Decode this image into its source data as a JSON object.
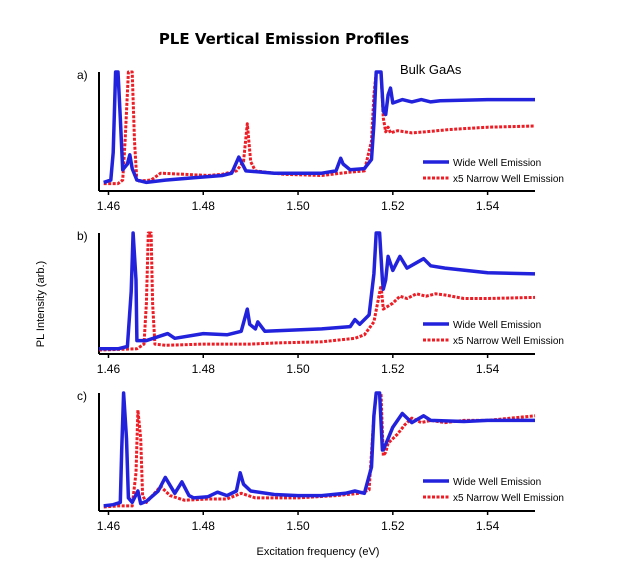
{
  "chart_data": {
    "type": "line",
    "title": "PLE Vertical Emission Profiles",
    "xlabel": "Excitation frequency (eV)",
    "ylabel": "PL Intensity (arb.)",
    "xlim": [
      1.458,
      1.55
    ],
    "x_ticks": [
      "1.46",
      "1.48",
      "1.50",
      "1.52",
      "1.54"
    ],
    "x_tick_values": [
      1.46,
      1.48,
      1.5,
      1.52,
      1.54
    ],
    "annotation": "Bulk GaAs",
    "colors": {
      "wide": "#2222dd",
      "narrow": "#ee1c24"
    },
    "panels": [
      {
        "label": "a)",
        "legend": [
          "Wide Well Emission",
          "x5 Narrow Well Emission"
        ],
        "series": [
          {
            "name": "Wide Well Emission",
            "style": "solid",
            "points": [
              [
                1.459,
                4
              ],
              [
                1.4605,
                6
              ],
              [
                1.461,
                30
              ],
              [
                1.4615,
                100
              ],
              [
                1.462,
                100
              ],
              [
                1.4625,
                60
              ],
              [
                1.463,
                15
              ],
              [
                1.464,
                20
              ],
              [
                1.4645,
                28
              ],
              [
                1.465,
                16
              ],
              [
                1.466,
                6
              ],
              [
                1.468,
                4
              ],
              [
                1.472,
                6
              ],
              [
                1.478,
                8
              ],
              [
                1.484,
                10
              ],
              [
                1.486,
                12
              ],
              [
                1.4875,
                26
              ],
              [
                1.488,
                22
              ],
              [
                1.489,
                14
              ],
              [
                1.495,
                12
              ],
              [
                1.505,
                12
              ],
              [
                1.508,
                14
              ],
              [
                1.509,
                25
              ],
              [
                1.5095,
                20
              ],
              [
                1.511,
                15
              ],
              [
                1.514,
                16
              ],
              [
                1.5155,
                24
              ],
              [
                1.516,
                55
              ],
              [
                1.5165,
                100
              ],
              [
                1.5175,
                100
              ],
              [
                1.518,
                66
              ],
              [
                1.5185,
                63
              ],
              [
                1.519,
                80
              ],
              [
                1.5195,
                86
              ],
              [
                1.52,
                73
              ],
              [
                1.522,
                76
              ],
              [
                1.524,
                74
              ],
              [
                1.526,
                76
              ],
              [
                1.528,
                74
              ],
              [
                1.53,
                75
              ],
              [
                1.54,
                76
              ],
              [
                1.55,
                76
              ]
            ]
          },
          {
            "name": "x5 Narrow Well Emission",
            "style": "dashed",
            "points": [
              [
                1.459,
                3
              ],
              [
                1.462,
                3
              ],
              [
                1.463,
                6
              ],
              [
                1.4635,
                40
              ],
              [
                1.4642,
                100
              ],
              [
                1.465,
                100
              ],
              [
                1.4655,
                40
              ],
              [
                1.466,
                5
              ],
              [
                1.469,
                6
              ],
              [
                1.471,
                12
              ],
              [
                1.476,
                11
              ],
              [
                1.481,
                10
              ],
              [
                1.484,
                11
              ],
              [
                1.487,
                14
              ],
              [
                1.4885,
                22
              ],
              [
                1.4893,
                55
              ],
              [
                1.49,
                22
              ],
              [
                1.491,
                14
              ],
              [
                1.497,
                11
              ],
              [
                1.505,
                10
              ],
              [
                1.511,
                13
              ],
              [
                1.514,
                14
              ],
              [
                1.5155,
                40
              ],
              [
                1.516,
                80
              ],
              [
                1.5165,
                100
              ],
              [
                1.5175,
                100
              ],
              [
                1.518,
                60
              ],
              [
                1.5185,
                48
              ],
              [
                1.519,
                52
              ],
              [
                1.5195,
                47
              ],
              [
                1.521,
                49
              ],
              [
                1.524,
                47
              ],
              [
                1.527,
                48
              ],
              [
                1.532,
                50
              ],
              [
                1.54,
                52
              ],
              [
                1.55,
                53
              ]
            ]
          }
        ]
      },
      {
        "label": "b)",
        "legend": [
          "Wide Well Emission",
          "x5 Narrow Well Emission"
        ],
        "series": [
          {
            "name": "Wide Well Emission",
            "style": "solid",
            "points": [
              [
                1.458,
                1
              ],
              [
                1.462,
                1
              ],
              [
                1.464,
                3
              ],
              [
                1.4648,
                50
              ],
              [
                1.4652,
                100
              ],
              [
                1.4658,
                60
              ],
              [
                1.466,
                8
              ],
              [
                1.468,
                8
              ],
              [
                1.4725,
                14
              ],
              [
                1.474,
                10
              ],
              [
                1.48,
                14
              ],
              [
                1.485,
                13
              ],
              [
                1.488,
                16
              ],
              [
                1.4893,
                35
              ],
              [
                1.4898,
                22
              ],
              [
                1.491,
                18
              ],
              [
                1.4915,
                24
              ],
              [
                1.493,
                16
              ],
              [
                1.505,
                18
              ],
              [
                1.511,
                20
              ],
              [
                1.512,
                26
              ],
              [
                1.513,
                22
              ],
              [
                1.515,
                30
              ],
              [
                1.516,
                65
              ],
              [
                1.5165,
                100
              ],
              [
                1.5172,
                100
              ],
              [
                1.5178,
                60
              ],
              [
                1.518,
                52
              ],
              [
                1.5185,
                60
              ],
              [
                1.519,
                80
              ],
              [
                1.52,
                68
              ],
              [
                1.5215,
                80
              ],
              [
                1.523,
                70
              ],
              [
                1.5265,
                78
              ],
              [
                1.528,
                72
              ],
              [
                1.531,
                70
              ],
              [
                1.54,
                66
              ],
              [
                1.55,
                65
              ]
            ]
          },
          {
            "name": "x5 Narrow Well Emission",
            "style": "dashed",
            "points": [
              [
                1.458,
                0
              ],
              [
                1.466,
                1
              ],
              [
                1.4675,
                5
              ],
              [
                1.468,
                40
              ],
              [
                1.4684,
                100
              ],
              [
                1.469,
                100
              ],
              [
                1.4693,
                40
              ],
              [
                1.4698,
                5
              ],
              [
                1.472,
                4
              ],
              [
                1.48,
                5
              ],
              [
                1.49,
                5
              ],
              [
                1.495,
                6
              ],
              [
                1.505,
                7
              ],
              [
                1.512,
                10
              ],
              [
                1.514,
                13
              ],
              [
                1.516,
                24
              ],
              [
                1.5175,
                55
              ],
              [
                1.518,
                35
              ],
              [
                1.52,
                40
              ],
              [
                1.5215,
                46
              ],
              [
                1.523,
                44
              ],
              [
                1.525,
                48
              ],
              [
                1.527,
                46
              ],
              [
                1.529,
                48
              ],
              [
                1.531,
                47
              ],
              [
                1.535,
                44
              ],
              [
                1.54,
                44
              ],
              [
                1.55,
                45
              ]
            ]
          }
        ]
      },
      {
        "label": "c)",
        "legend": [
          "Wide Well Emission",
          "x5 Narrow Well Emission"
        ],
        "series": [
          {
            "name": "Wide Well Emission",
            "style": "solid",
            "points": [
              [
                1.459,
                1
              ],
              [
                1.461,
                2
              ],
              [
                1.4625,
                4
              ],
              [
                1.4628,
                50
              ],
              [
                1.4632,
                100
              ],
              [
                1.4638,
                60
              ],
              [
                1.4642,
                8
              ],
              [
                1.465,
                4
              ],
              [
                1.4662,
                14
              ],
              [
                1.4668,
                3
              ],
              [
                1.468,
                5
              ],
              [
                1.4705,
                14
              ],
              [
                1.472,
                26
              ],
              [
                1.474,
                12
              ],
              [
                1.4755,
                22
              ],
              [
                1.477,
                10
              ],
              [
                1.478,
                8
              ],
              [
                1.481,
                9
              ],
              [
                1.483,
                13
              ],
              [
                1.485,
                10
              ],
              [
                1.487,
                14
              ],
              [
                1.4878,
                30
              ],
              [
                1.4885,
                20
              ],
              [
                1.49,
                14
              ],
              [
                1.495,
                11
              ],
              [
                1.5,
                10
              ],
              [
                1.505,
                10
              ],
              [
                1.51,
                12
              ],
              [
                1.512,
                14
              ],
              [
                1.514,
                12
              ],
              [
                1.5155,
                35
              ],
              [
                1.516,
                80
              ],
              [
                1.5165,
                100
              ],
              [
                1.5172,
                100
              ],
              [
                1.5178,
                50
              ],
              [
                1.518,
                50
              ],
              [
                1.519,
                60
              ],
              [
                1.52,
                70
              ],
              [
                1.522,
                82
              ],
              [
                1.524,
                74
              ],
              [
                1.5265,
                80
              ],
              [
                1.528,
                76
              ],
              [
                1.535,
                75
              ],
              [
                1.54,
                76
              ],
              [
                1.55,
                76
              ]
            ]
          },
          {
            "name": "x5 Narrow Well Emission",
            "style": "dashed",
            "points": [
              [
                1.459,
                0
              ],
              [
                1.462,
                1
              ],
              [
                1.465,
                1
              ],
              [
                1.4658,
                30
              ],
              [
                1.4662,
                85
              ],
              [
                1.4668,
                60
              ],
              [
                1.4672,
                10
              ],
              [
                1.468,
                4
              ],
              [
                1.471,
                18
              ],
              [
                1.473,
                10
              ],
              [
                1.476,
                6
              ],
              [
                1.481,
                7
              ],
              [
                1.485,
                7
              ],
              [
                1.488,
                12
              ],
              [
                1.491,
                8
              ],
              [
                1.5,
                8
              ],
              [
                1.508,
                10
              ],
              [
                1.513,
                12
              ],
              [
                1.515,
                15
              ],
              [
                1.516,
                80
              ],
              [
                1.5165,
                100
              ],
              [
                1.5175,
                100
              ],
              [
                1.518,
                45
              ],
              [
                1.5185,
                48
              ],
              [
                1.519,
                56
              ],
              [
                1.521,
                64
              ],
              [
                1.5225,
                72
              ],
              [
                1.524,
                78
              ],
              [
                1.526,
                74
              ],
              [
                1.528,
                76
              ],
              [
                1.531,
                74
              ],
              [
                1.535,
                76
              ],
              [
                1.54,
                76
              ],
              [
                1.545,
                78
              ],
              [
                1.55,
                80
              ]
            ]
          }
        ]
      }
    ]
  }
}
